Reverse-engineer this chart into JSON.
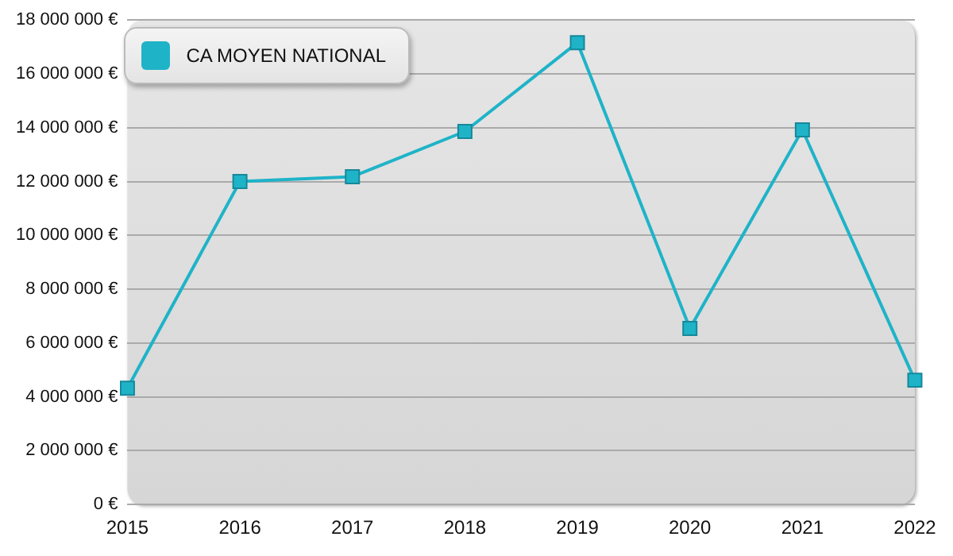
{
  "chart_data": {
    "type": "line",
    "categories": [
      "2015",
      "2016",
      "2017",
      "2018",
      "2019",
      "2020",
      "2021",
      "2022"
    ],
    "series": [
      {
        "name": "CA MOYEN NATIONAL",
        "color": "#1fb3c8",
        "values": [
          4320000,
          12000000,
          12180000,
          13860000,
          17160000,
          6540000,
          13920000,
          4620000
        ]
      }
    ],
    "ylim": [
      0,
      18000000
    ],
    "yticks": [
      {
        "value": 0,
        "label": "0 €"
      },
      {
        "value": 2000000,
        "label": "2 000 000 €"
      },
      {
        "value": 4000000,
        "label": "4 000 000 €"
      },
      {
        "value": 6000000,
        "label": "6 000 000 €"
      },
      {
        "value": 8000000,
        "label": "8 000 000 €"
      },
      {
        "value": 10000000,
        "label": "10 000 000 €"
      },
      {
        "value": 12000000,
        "label": "12 000 000 €"
      },
      {
        "value": 14000000,
        "label": "14 000 000 €"
      },
      {
        "value": 16000000,
        "label": "16 000 000 €"
      },
      {
        "value": 18000000,
        "label": "18 000 000 €"
      }
    ],
    "grid": "y",
    "legend": "top left",
    "marker": "square",
    "line_style": "solid"
  }
}
